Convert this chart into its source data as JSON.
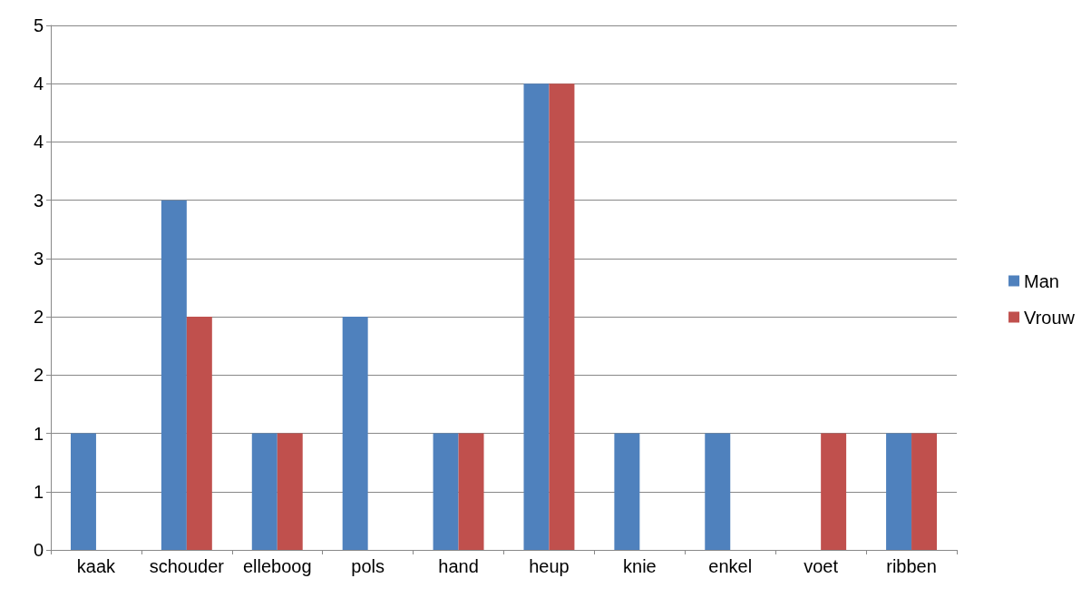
{
  "chart_data": {
    "type": "bar",
    "categories": [
      "kaak",
      "schouder",
      "elleboog",
      "pols",
      "hand",
      "heup",
      "knie",
      "enkel",
      "voet",
      "ribben"
    ],
    "series": [
      {
        "name": "Man",
        "color": "#4f81bd",
        "values": [
          1,
          3,
          1,
          2,
          1,
          4,
          1,
          1,
          0,
          1
        ]
      },
      {
        "name": "Vrouw",
        "color": "#c0504d",
        "values": [
          0,
          2,
          1,
          0,
          1,
          4,
          0,
          0,
          1,
          1
        ]
      }
    ],
    "ylim": [
      0,
      4.5
    ],
    "yticks": [
      0,
      {
        "value": 0.5,
        "label": "1"
      },
      1,
      {
        "value": 1.5,
        "label": "2"
      },
      2,
      {
        "value": 2.5,
        "label": "3"
      },
      3,
      {
        "value": 3.5,
        "label": "4"
      },
      4,
      {
        "value": 4.5,
        "label": "5"
      }
    ],
    "grid": "y",
    "legend": "right"
  }
}
